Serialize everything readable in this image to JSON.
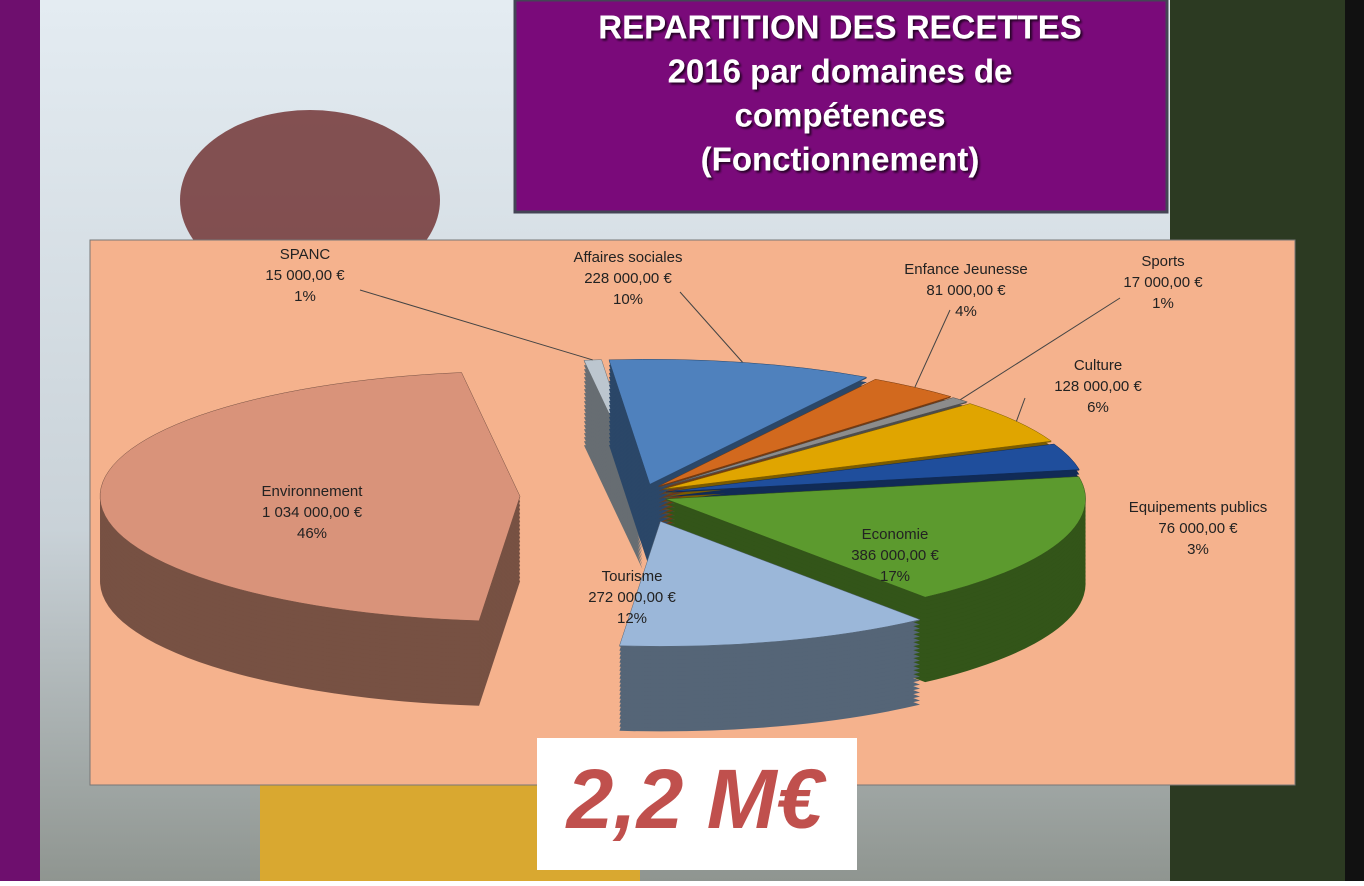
{
  "chart_data": {
    "type": "pie3d",
    "title_lines": [
      "REPARTITION DES RECETTES",
      "2016 par domaines de",
      "compétences",
      "(Fonctionnement)"
    ],
    "categories": [
      "SPANC",
      "Affaires sociales",
      "Enfance Jeunesse",
      "Sports",
      "Culture",
      "Equipements publics",
      "Economie",
      "Tourisme",
      "Environnement"
    ],
    "values": [
      15000,
      228000,
      81000,
      17000,
      128000,
      76000,
      386000,
      272000,
      1034000
    ],
    "value_labels": [
      "15 000,00 €",
      "228 000,00 €",
      "81 000,00 €",
      "17 000,00 €",
      "128 000,00 €",
      "76 000,00 €",
      "386 000,00 €",
      "272 000,00 €",
      "1 034 000,00 €"
    ],
    "percent_labels": [
      "1%",
      "10%",
      "4%",
      "1%",
      "6%",
      "3%",
      "17%",
      "12%",
      "46%"
    ],
    "colors": [
      "#bcc6cf",
      "#4f81bd",
      "#d2691e",
      "#8c8c8c",
      "#e0a500",
      "#1f4e9c",
      "#5c9a2e",
      "#9bb7d9",
      "#d9937a"
    ],
    "total_label": "2,2 M€"
  }
}
